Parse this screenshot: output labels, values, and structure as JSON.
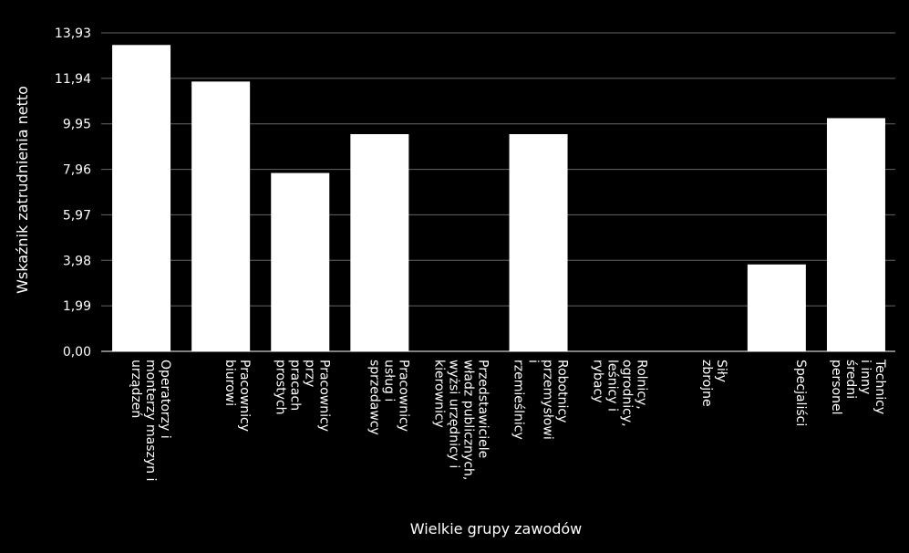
{
  "chart_data": {
    "type": "bar",
    "xlabel": "Wielkie grupy zawodów",
    "ylabel": "Wskaźnik zatrudnienia netto",
    "ylim": [
      0,
      13.93
    ],
    "yticks": [
      "0,00",
      "1,99",
      "3,98",
      "5,97",
      "7,96",
      "9,95",
      "11,94",
      "13,93"
    ],
    "grid": true,
    "categories": [
      [
        "Operatorzy i",
        "monterzy maszyn i",
        "urządzeń"
      ],
      [
        "Pracownicy",
        "biurowi"
      ],
      [
        "Pracownicy",
        "przy",
        "pracach",
        "prostych"
      ],
      [
        "Pracownicy",
        "usług i",
        "sprzedawcy"
      ],
      [
        "Przedstawiciele",
        "władz publicznych,",
        "wyżsi urzędnicy i",
        "kierownicy"
      ],
      [
        "Robotnicy",
        "przemysłowi",
        "i",
        "rzemieślnicy"
      ],
      [
        "Rolnicy,",
        "ogrodnicy,",
        "leśnicy i",
        "rybacy"
      ],
      [
        "Siły",
        "zbrojne"
      ],
      [
        "Specjaliści"
      ],
      [
        "Technicy",
        "i inny",
        "średni",
        "personel"
      ]
    ],
    "values": [
      13.4,
      11.8,
      7.8,
      9.5,
      0,
      9.5,
      0,
      0,
      3.8,
      10.2
    ],
    "colors": {
      "background": "#000000",
      "bar": "#ffffff",
      "grid": "#666666",
      "text": "#ffffff"
    }
  }
}
